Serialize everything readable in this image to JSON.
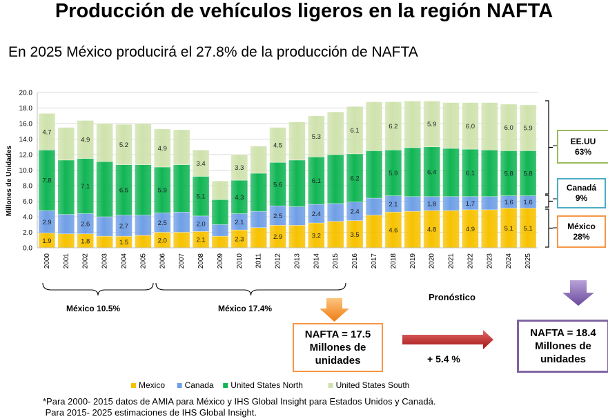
{
  "title": "Producción de vehículos ligeros en la región NAFTA",
  "subtitle": "En 2025 México producirá el 27.8% de la producción  de NAFTA",
  "colors": {
    "mexico": "#f7c200",
    "canada": "#6f9fe6",
    "us_north": "#11b554",
    "us_south": "#cfe2ad",
    "box_eeuu": "#9bbb59",
    "box_canada": "#4bacc6",
    "box_mexico": "#f79646",
    "box_nafta1": "#f79646",
    "box_nafta2": "#8064a2"
  },
  "chart_data": {
    "type": "bar",
    "stacked": true,
    "ylabel": "Millones de Unidades",
    "ylim": [
      0,
      20
    ],
    "yticks": [
      "0.0",
      "2.0",
      "4.0",
      "6.0",
      "8.0",
      "10.0",
      "12.0",
      "14.0",
      "16.0",
      "18.0",
      "20.0"
    ],
    "categories": [
      "2000",
      "2001",
      "2002",
      "2003",
      "2004",
      "2005",
      "2006",
      "2007",
      "2008",
      "2009",
      "2010",
      "2011",
      "2012",
      "2013",
      "2014",
      "2015",
      "2016",
      "2017",
      "2018",
      "2019",
      "2020",
      "2021",
      "2022",
      "2023",
      "2024",
      "2025"
    ],
    "series": [
      {
        "name": "Mexico",
        "key": "mexico",
        "values": [
          1.9,
          1.8,
          1.8,
          1.5,
          1.5,
          1.6,
          2.0,
          2.0,
          2.1,
          1.5,
          2.3,
          2.6,
          2.9,
          2.9,
          3.2,
          3.4,
          3.5,
          4.2,
          4.6,
          4.7,
          4.8,
          4.8,
          4.9,
          4.9,
          5.1,
          5.1
        ]
      },
      {
        "name": "Canada",
        "key": "canada",
        "values": [
          2.9,
          2.5,
          2.6,
          2.5,
          2.7,
          2.6,
          2.5,
          2.6,
          2.0,
          1.5,
          2.1,
          2.1,
          2.5,
          2.4,
          2.4,
          2.3,
          2.4,
          2.2,
          2.1,
          1.9,
          1.8,
          1.8,
          1.7,
          1.7,
          1.6,
          1.6
        ]
      },
      {
        "name": "United States North",
        "key": "us_north",
        "values": [
          7.8,
          7.0,
          7.1,
          7.1,
          6.5,
          6.5,
          5.9,
          6.1,
          5.1,
          3.2,
          4.3,
          4.9,
          5.6,
          6.0,
          6.1,
          6.3,
          6.2,
          6.1,
          5.9,
          6.3,
          6.4,
          6.2,
          6.1,
          6.0,
          5.8,
          5.8
        ]
      },
      {
        "name": "United States South",
        "key": "us_south",
        "values": [
          4.7,
          4.2,
          4.9,
          4.9,
          5.2,
          5.3,
          4.9,
          4.5,
          3.4,
          2.4,
          3.3,
          3.5,
          4.5,
          4.9,
          5.3,
          5.5,
          6.1,
          6.3,
          6.2,
          6.0,
          5.9,
          5.9,
          6.0,
          6.1,
          6.0,
          5.9
        ]
      }
    ],
    "data_labels": {
      "mexico": {
        "2000": "1.9",
        "2002": "1.8",
        "2004": "1.5",
        "2006": "2.0",
        "2008": "2.1",
        "2010": "2.3",
        "2012": "2.9",
        "2014": "3.2",
        "2016": "3.5",
        "2018": "4.6",
        "2020": "4.8",
        "2022": "4.9",
        "2024": "5.1",
        "2025": "5.1"
      },
      "canada": {
        "2000": "2.9",
        "2002": "2.6",
        "2004": "2.7",
        "2006": "2.5",
        "2008": "2.0",
        "2010": "2.1",
        "2012": "2.5",
        "2014": "2.4",
        "2016": "2.4",
        "2018": "2.1",
        "2020": "1.8",
        "2022": "1.7",
        "2024": "1.6",
        "2025": "1.6"
      },
      "us_north": {
        "2000": "7.8",
        "2002": "7.1",
        "2004": "6.5",
        "2006": "5.9",
        "2008": "5.1",
        "2010": "4.3",
        "2012": "5.6",
        "2014": "6.1",
        "2016": "6.2",
        "2018": "5.9",
        "2020": "6.4",
        "2022": "6.1",
        "2024": "5.8",
        "2025": "5.8"
      },
      "us_south": {
        "2000": "4.7",
        "2002": "4.9",
        "2004": "5.2",
        "2006": "4.9",
        "2008": "3.4",
        "2010": "3.3",
        "2012": "4.5",
        "2014": "5.3",
        "2016": "6.1",
        "2018": "6.2",
        "2020": "5.9",
        "2022": "6.0",
        "2024": "6.0",
        "2025": "5.9"
      }
    },
    "legend": [
      "Mexico",
      "Canada",
      "United States North",
      "United States South"
    ],
    "legend_position": "bottom"
  },
  "annotations": {
    "share_eeuu": {
      "label": "EE.UU",
      "value": "63%"
    },
    "share_canada": {
      "label": "Canadá",
      "value": "9%"
    },
    "share_mexico": {
      "label": "México",
      "value": "28%"
    },
    "period1": "México 10.5%",
    "period2": "México 17.4%",
    "forecast": "Pronóstico",
    "nafta_2015": "NAFTA = 17.5 Millones de unidades",
    "nafta_2025": "NAFTA = 18.4 Millones de unidades",
    "growth": "+ 5.4 %"
  },
  "footnote": {
    "line1": "*Para 2000- 2015 datos de AMIA para México y  IHS Global Insight para Estados Unidos y Canadá.",
    "line2": " Para 2015- 2025 estimaciones de IHS Global Insight."
  }
}
